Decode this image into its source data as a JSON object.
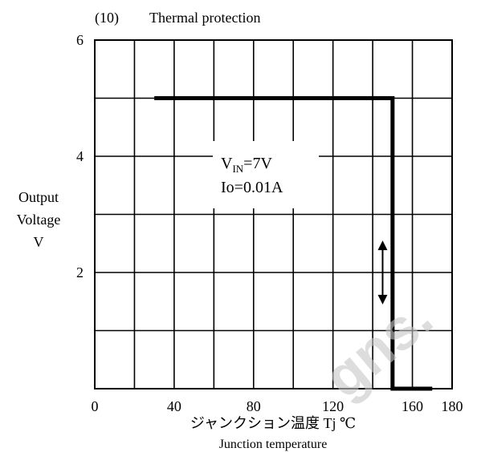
{
  "figure": {
    "number": "(10)",
    "title": "Thermal protection"
  },
  "annotation": {
    "vin_label": "V",
    "vin_sub": "IN",
    "vin_value": "=7V",
    "io_label": "Io=0.01A"
  },
  "ylabel_lines": [
    "Output",
    "Voltage",
    "V"
  ],
  "xlabel_jp": "ジャンクション温度  Tj ℃",
  "xlabel_en": "Junction temperature",
  "watermark": "gns.",
  "colors": {
    "line": "#000000",
    "grid": "#000000",
    "watermark": "#c8c8c8"
  },
  "chart_data": {
    "type": "line",
    "title": "Thermal protection",
    "xlabel": "Junction temperature",
    "ylabel": "Output Voltage V",
    "xlim": [
      0,
      180
    ],
    "ylim": [
      0,
      6
    ],
    "xticks": [
      0,
      40,
      80,
      120,
      160,
      180
    ],
    "yticks": [
      2,
      4,
      6
    ],
    "grid": true,
    "series": [
      {
        "x": [
          30,
          150,
          150,
          170
        ],
        "y": [
          5,
          5,
          0,
          0
        ]
      }
    ],
    "arrow": {
      "x": 145,
      "y_range": [
        1.45,
        2.55
      ],
      "direction": "both"
    }
  }
}
